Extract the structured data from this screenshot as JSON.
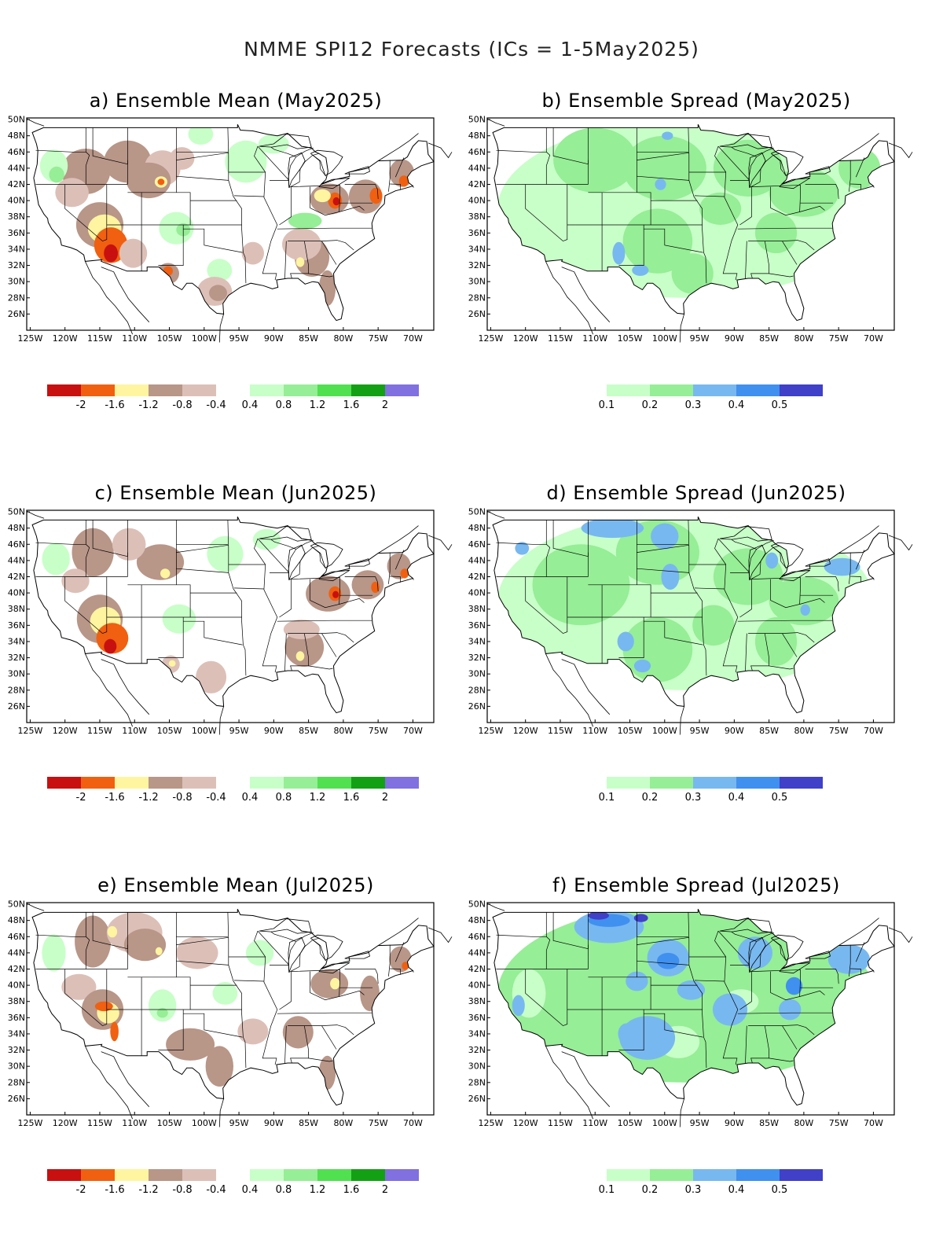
{
  "title": "NMME SPI12 Forecasts (ICs = 1-5May2025)",
  "panels": [
    {
      "id": "a",
      "type": "mean",
      "title": "a) Ensemble Mean (May2025)"
    },
    {
      "id": "b",
      "type": "spread",
      "title": "b) Ensemble Spread (May2025)"
    },
    {
      "id": "c",
      "type": "mean",
      "title": "c) Ensemble Mean (Jun2025)"
    },
    {
      "id": "d",
      "type": "spread",
      "title": "d) Ensemble Spread (Jun2025)"
    },
    {
      "id": "e",
      "type": "mean",
      "title": "e) Ensemble Mean (Jul2025)"
    },
    {
      "id": "f",
      "type": "spread",
      "title": "f) Ensemble Spread (Jul2025)"
    }
  ],
  "lat_labels": [
    "50N",
    "48N",
    "46N",
    "44N",
    "42N",
    "40N",
    "38N",
    "36N",
    "34N",
    "32N",
    "30N",
    "28N",
    "26N"
  ],
  "lon_labels": [
    "125W",
    "120W",
    "115W",
    "110W",
    "105W",
    "100W",
    "95W",
    "90W",
    "85W",
    "80W",
    "75W",
    "70W"
  ],
  "mean_colorbar": {
    "colors": [
      "#c81010",
      "#f06010",
      "#fff5a0",
      "#b89688",
      "#dcc0b8",
      "#ffffff",
      "#c8ffc8",
      "#96ee96",
      "#50e050",
      "#14a014",
      "#8070e0"
    ],
    "labels": [
      "-2",
      "-1.6",
      "-1.2",
      "-0.8",
      "-0.4",
      "0.4",
      "0.8",
      "1.2",
      "1.6",
      "2"
    ]
  },
  "spread_colorbar": {
    "colors": [
      "#c8ffc8",
      "#96ee96",
      "#78b8f0",
      "#4090f0",
      "#4040c8"
    ],
    "labels": [
      "0.1",
      "0.2",
      "0.3",
      "0.4",
      "0.5"
    ]
  },
  "colors": {
    "mean_d4": "#c81010",
    "mean_d3": "#f06010",
    "mean_d2": "#fff5a0",
    "mean_d1": "#b89688",
    "mean_d0": "#dcc0b8",
    "mean_w0": "#c8ffc8",
    "mean_w1": "#96ee96",
    "spread_1": "#c8ffc8",
    "spread_2": "#96ee96",
    "spread_3": "#78b8f0",
    "spread_4": "#4090f0",
    "spread_5": "#4040c8"
  }
}
